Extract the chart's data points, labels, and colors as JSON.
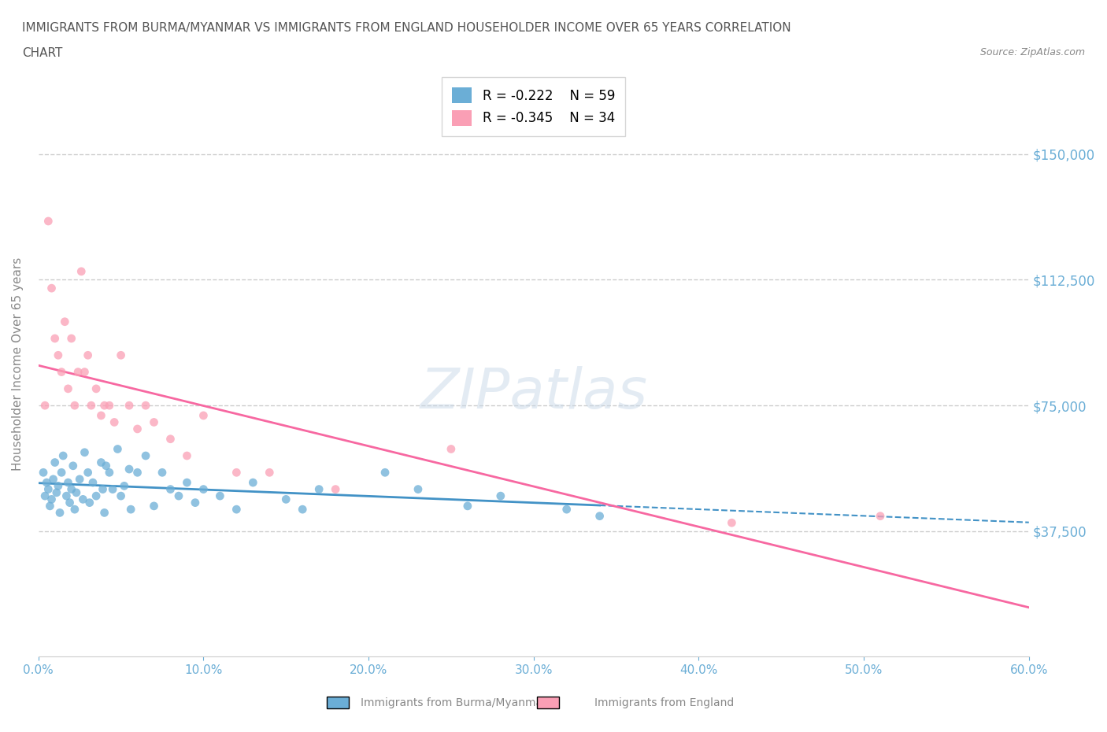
{
  "title_line1": "IMMIGRANTS FROM BURMA/MYANMAR VS IMMIGRANTS FROM ENGLAND HOUSEHOLDER INCOME OVER 65 YEARS CORRELATION",
  "title_line2": "CHART",
  "source": "Source: ZipAtlas.com",
  "xlabel": "",
  "ylabel": "Householder Income Over 65 years",
  "xlim": [
    0.0,
    0.6
  ],
  "ylim": [
    0,
    175000
  ],
  "yticks": [
    0,
    37500,
    75000,
    112500,
    150000
  ],
  "ytick_labels": [
    "",
    "$37,500",
    "$75,000",
    "$112,500",
    "$150,000"
  ],
  "xtick_labels": [
    "0.0%",
    "10.0%",
    "20.0%",
    "30.0%",
    "40.0%",
    "50.0%",
    "60.0%"
  ],
  "xticks": [
    0.0,
    0.1,
    0.2,
    0.3,
    0.4,
    0.5,
    0.6
  ],
  "legend_burma_r": "R = -0.222",
  "legend_burma_n": "N = 59",
  "legend_england_r": "R = -0.345",
  "legend_england_n": "N = 34",
  "burma_color": "#6baed6",
  "england_color": "#fa9fb5",
  "burma_trend_color": "#4292c6",
  "england_trend_color": "#f768a1",
  "background_color": "#ffffff",
  "watermark": "ZIPatlas",
  "watermark_color": "#c8d8e8",
  "grid_color": "#cccccc",
  "title_color": "#555555",
  "axis_label_color": "#6baed6",
  "tick_color": "#6baed6",
  "burma_x": [
    0.003,
    0.004,
    0.005,
    0.006,
    0.007,
    0.008,
    0.009,
    0.01,
    0.011,
    0.012,
    0.013,
    0.014,
    0.015,
    0.017,
    0.018,
    0.019,
    0.02,
    0.021,
    0.022,
    0.023,
    0.025,
    0.027,
    0.028,
    0.03,
    0.031,
    0.033,
    0.035,
    0.038,
    0.039,
    0.04,
    0.041,
    0.043,
    0.045,
    0.048,
    0.05,
    0.052,
    0.055,
    0.056,
    0.06,
    0.065,
    0.07,
    0.075,
    0.08,
    0.085,
    0.09,
    0.095,
    0.1,
    0.11,
    0.12,
    0.13,
    0.15,
    0.16,
    0.17,
    0.21,
    0.23,
    0.26,
    0.28,
    0.32,
    0.34
  ],
  "burma_y": [
    55000,
    48000,
    52000,
    50000,
    45000,
    47000,
    53000,
    58000,
    49000,
    51000,
    43000,
    55000,
    60000,
    48000,
    52000,
    46000,
    50000,
    57000,
    44000,
    49000,
    53000,
    47000,
    61000,
    55000,
    46000,
    52000,
    48000,
    58000,
    50000,
    43000,
    57000,
    55000,
    50000,
    62000,
    48000,
    51000,
    56000,
    44000,
    55000,
    60000,
    45000,
    55000,
    50000,
    48000,
    52000,
    46000,
    50000,
    48000,
    44000,
    52000,
    47000,
    44000,
    50000,
    55000,
    50000,
    45000,
    48000,
    44000,
    42000
  ],
  "england_x": [
    0.004,
    0.006,
    0.008,
    0.01,
    0.012,
    0.014,
    0.016,
    0.018,
    0.02,
    0.022,
    0.024,
    0.026,
    0.028,
    0.03,
    0.032,
    0.035,
    0.038,
    0.04,
    0.043,
    0.046,
    0.05,
    0.055,
    0.06,
    0.065,
    0.07,
    0.08,
    0.09,
    0.1,
    0.12,
    0.14,
    0.18,
    0.25,
    0.42,
    0.51
  ],
  "england_y": [
    75000,
    130000,
    110000,
    95000,
    90000,
    85000,
    100000,
    80000,
    95000,
    75000,
    85000,
    115000,
    85000,
    90000,
    75000,
    80000,
    72000,
    75000,
    75000,
    70000,
    90000,
    75000,
    68000,
    75000,
    70000,
    65000,
    60000,
    72000,
    55000,
    55000,
    50000,
    62000,
    40000,
    42000
  ]
}
